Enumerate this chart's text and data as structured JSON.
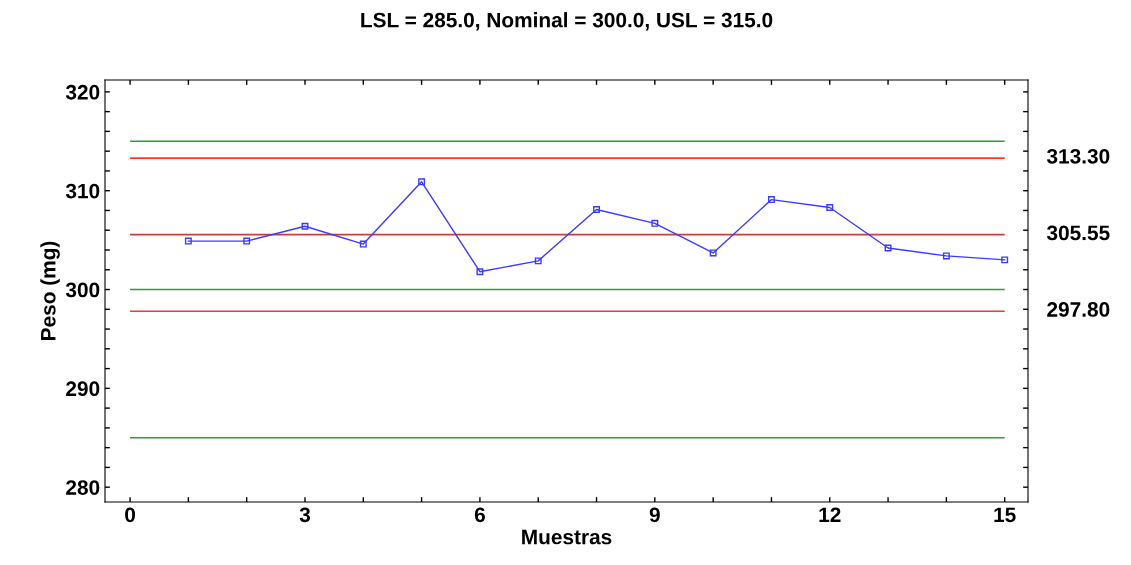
{
  "chart_data": {
    "type": "line",
    "title": "LSL = 285.0, Nominal = 300.0, USL = 315.0",
    "xlabel": "Muestras",
    "ylabel": "Peso (mg)",
    "x": [
      1,
      2,
      3,
      4,
      5,
      6,
      7,
      8,
      9,
      10,
      11,
      12,
      13,
      14,
      15
    ],
    "series": [
      {
        "color": "#3b3bff",
        "values": [
          304.9,
          304.9,
          306.4,
          304.6,
          310.9,
          301.8,
          302.9,
          308.1,
          306.7,
          303.7,
          309.1,
          308.3,
          304.2,
          303.4,
          303.0
        ]
      }
    ],
    "marker": "square",
    "line_style": "solid",
    "grid": false,
    "legend": false,
    "xlim": [
      -0.43,
      15.4
    ],
    "xticks": [
      0,
      {
        "value": 1,
        "label": null
      },
      {
        "value": 2,
        "label": null
      },
      3,
      {
        "value": 4,
        "label": null
      },
      {
        "value": 5,
        "label": null
      },
      6,
      {
        "value": 7,
        "label": null
      },
      {
        "value": 8,
        "label": null
      },
      9,
      {
        "value": 10,
        "label": null
      },
      {
        "value": 11,
        "label": null
      },
      12,
      {
        "value": 13,
        "label": null
      },
      {
        "value": 14,
        "label": null
      },
      15
    ],
    "ylim": [
      278.5,
      321.2
    ],
    "yticks": [
      280,
      {
        "value": 282,
        "label": null
      },
      {
        "value": 284,
        "label": null
      },
      {
        "value": 286,
        "label": null
      },
      {
        "value": 288,
        "label": null
      },
      290,
      {
        "value": 292,
        "label": null
      },
      {
        "value": 294,
        "label": null
      },
      {
        "value": 296,
        "label": null
      },
      {
        "value": 298,
        "label": null
      },
      300,
      {
        "value": 302,
        "label": null
      },
      {
        "value": 304,
        "label": null
      },
      {
        "value": 306,
        "label": null
      },
      {
        "value": 308,
        "label": null
      },
      310,
      {
        "value": 312,
        "label": null
      },
      {
        "value": 314,
        "label": null
      },
      {
        "value": 316,
        "label": null
      },
      {
        "value": 318,
        "label": null
      },
      320
    ],
    "ref_lines": [
      {
        "axis": "y",
        "value": 315,
        "color": "#2ca02c"
      },
      {
        "axis": "y",
        "value": 313.3,
        "label": "313.30",
        "color": "#ff3333"
      },
      {
        "axis": "y",
        "value": 305.55,
        "label": "305.55",
        "color": "#c04040"
      },
      {
        "axis": "y",
        "value": 300,
        "color": "#2ca02c"
      },
      {
        "axis": "y",
        "value": 297.8,
        "label": "297.80",
        "color": "#ff3333"
      },
      {
        "axis": "y",
        "value": 285,
        "color": "#2ca02c"
      }
    ]
  }
}
